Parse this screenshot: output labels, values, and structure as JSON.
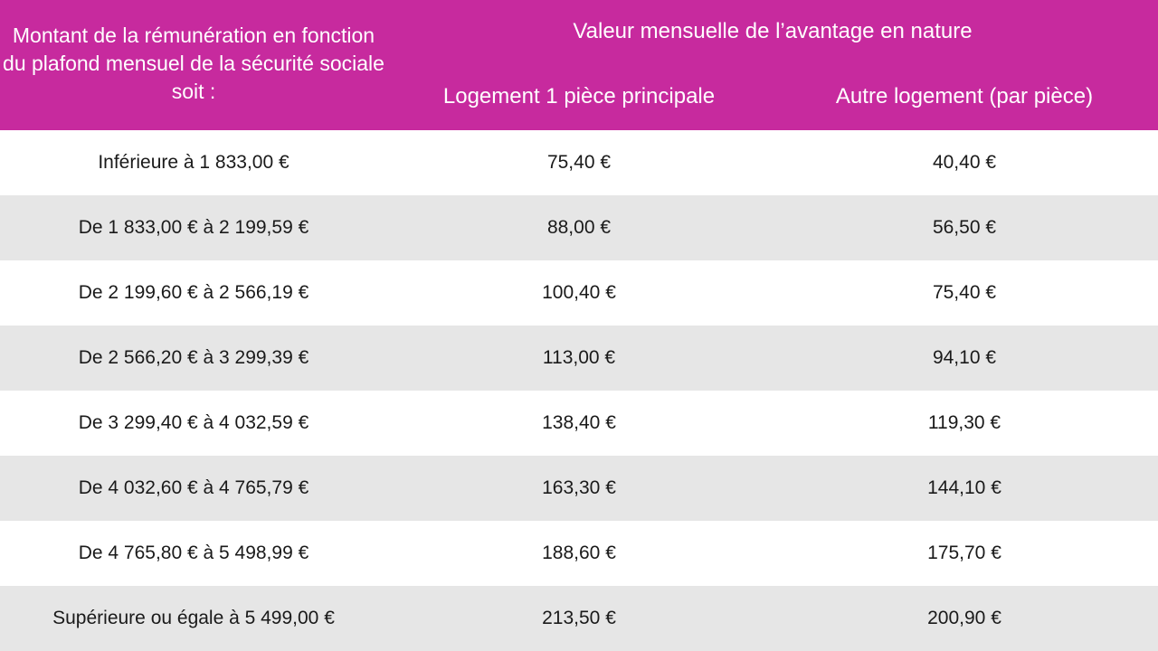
{
  "header": {
    "col1": "Montant de la rémunération en fonction du plafond mensuel de la sécurité sociale soit :",
    "group": "Valeur mensuelle de l’avantage en nature",
    "col2": "Logement 1 pièce principale",
    "col3": "Autre logement (par pièce)"
  },
  "colors": {
    "header_bg": "#c72a9e",
    "alt_row_bg": "#e6e6e6"
  },
  "rows": [
    {
      "range": "Inférieure à 1 833,00 €",
      "one_room": "75,40 €",
      "other": "40,40 €"
    },
    {
      "range": "De 1 833,00 € à 2 199,59 €",
      "one_room": "88,00 €",
      "other": "56,50 €"
    },
    {
      "range": "De 2 199,60 € à 2 566,19 €",
      "one_room": "100,40 €",
      "other": "75,40 €"
    },
    {
      "range": "De 2 566,20 € à 3 299,39 €",
      "one_room": "113,00 €",
      "other": "94,10 €"
    },
    {
      "range": "De 3 299,40 € à 4 032,59 €",
      "one_room": "138,40 €",
      "other": "119,30 €"
    },
    {
      "range": "De 4 032,60 € à 4 765,79 €",
      "one_room": "163,30 €",
      "other": "144,10 €"
    },
    {
      "range": "De 4 765,80 € à 5 498,99 €",
      "one_room": "188,60 €",
      "other": "175,70 €"
    },
    {
      "range": "Supérieure ou égale à 5 499,00 €",
      "one_room": "213,50 €",
      "other": "200,90 €"
    }
  ]
}
